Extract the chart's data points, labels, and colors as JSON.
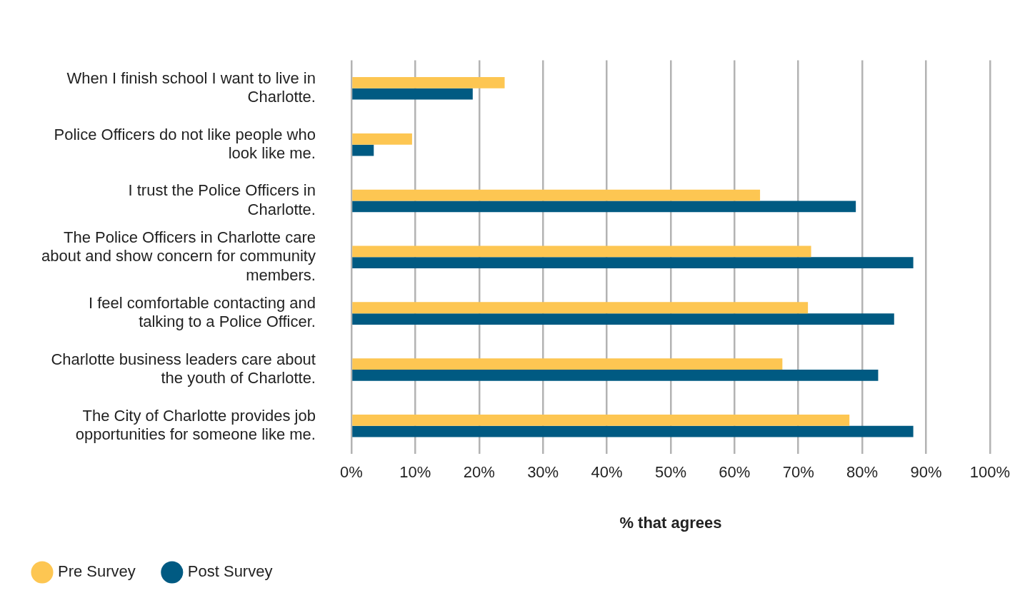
{
  "chart_data": {
    "type": "bar",
    "orientation": "horizontal",
    "xlabel": "% that agrees",
    "categories": [
      "When I finish school I want to live in Charlotte.",
      "Police Officers do not like people who look like me.",
      "I trust the Police Officers in Charlotte.",
      "The Police Officers in Charlotte care about and show concern for community members.",
      "I feel comfortable contacting and talking to a Police Officer.",
      "Charlotte business leaders care about the youth of Charlotte.",
      "The City of Charlotte provides job opportunities for someone like me."
    ],
    "series": [
      {
        "name": "Pre Survey",
        "color": "#fdc652",
        "values": [
          24,
          9.5,
          64,
          72,
          71.5,
          67.5,
          78
        ]
      },
      {
        "name": "Post Survey",
        "color": "#005a82",
        "values": [
          19,
          3.5,
          79,
          88,
          85,
          82.5,
          88
        ]
      }
    ],
    "xlim": [
      0,
      100
    ],
    "xticks": [
      {
        "value": 0,
        "label": "0%"
      },
      {
        "value": 10,
        "label": "10%"
      },
      {
        "value": 20,
        "label": "20%"
      },
      {
        "value": 30,
        "label": "30%"
      },
      {
        "value": 40,
        "label": "40%"
      },
      {
        "value": 50,
        "label": "50%"
      },
      {
        "value": 60,
        "label": "60%"
      },
      {
        "value": 70,
        "label": "70%"
      },
      {
        "value": 80,
        "label": "80%"
      },
      {
        "value": 90,
        "label": "90%"
      },
      {
        "value": 100,
        "label": "100%"
      }
    ],
    "grid": "x",
    "legend": "bottom left"
  }
}
